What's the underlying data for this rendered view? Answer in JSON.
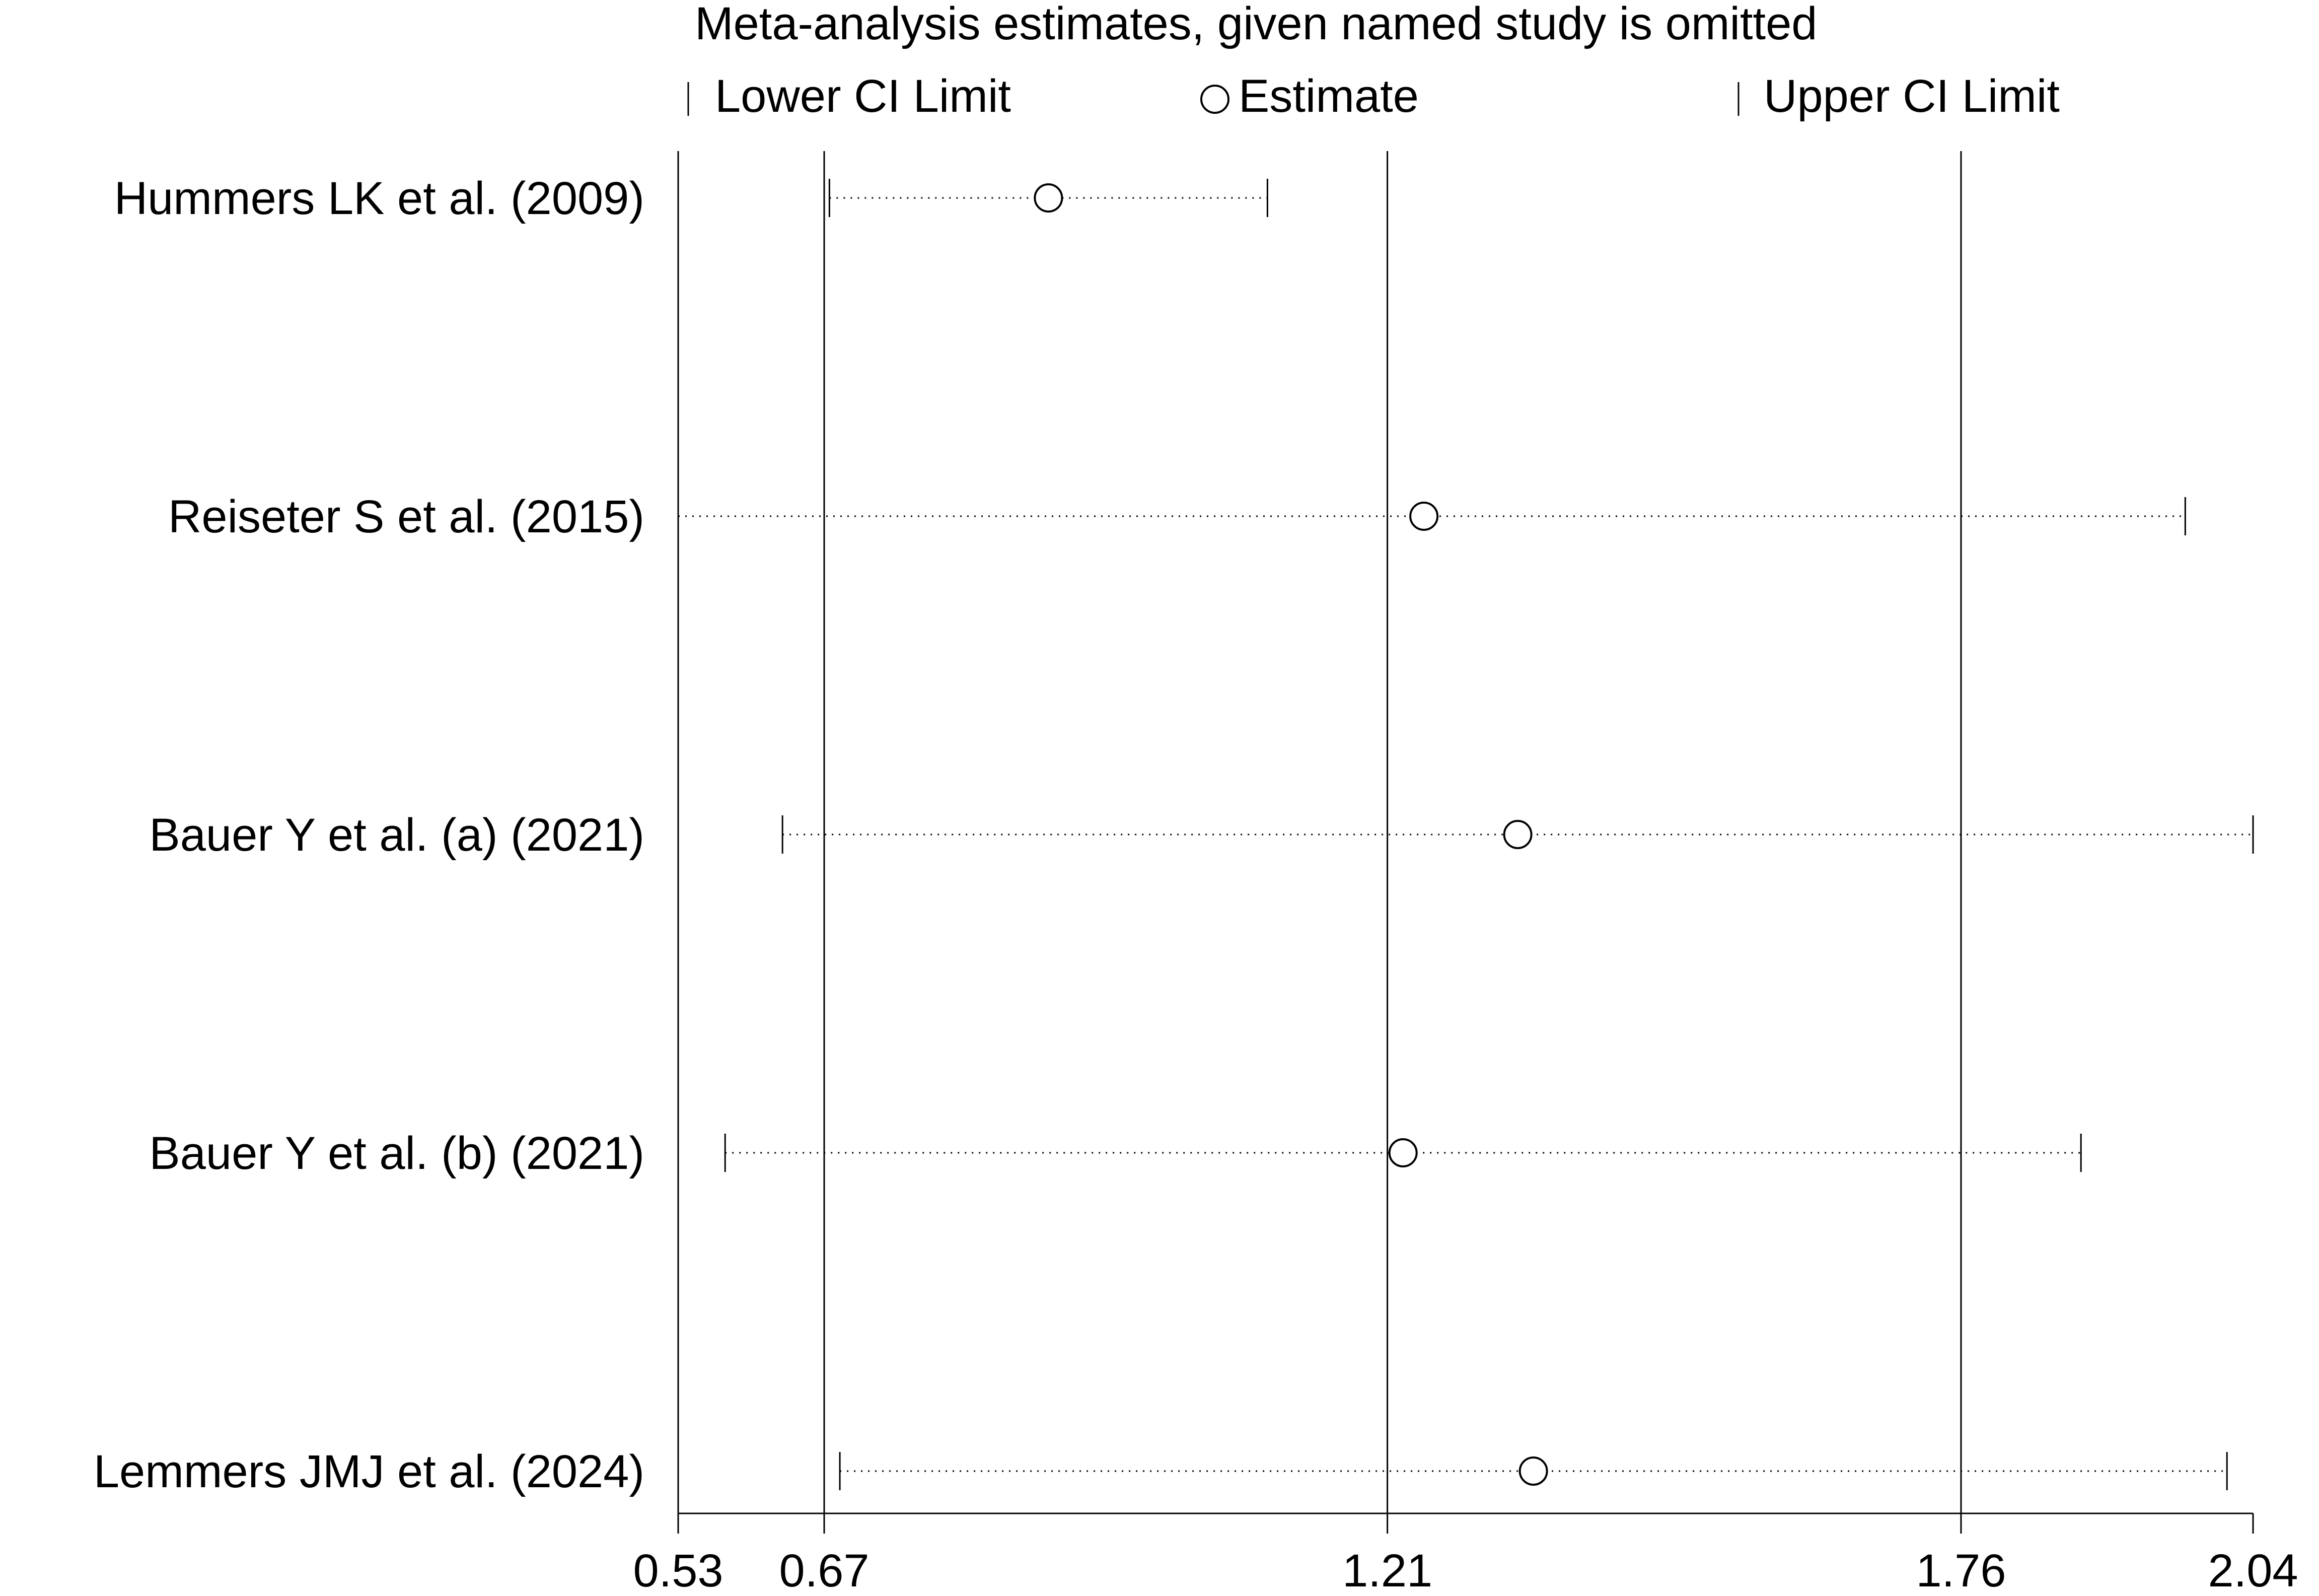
{
  "chart_data": {
    "type": "forest",
    "title": "Meta-analysis estimates, given named study is omitted",
    "legend": {
      "position": "top",
      "lower_label": "Lower CI Limit",
      "estimate_label": "Estimate",
      "upper_label": "Upper CI Limit"
    },
    "xlim": [
      0.53,
      2.04
    ],
    "x_ticks": [
      {
        "value": 0.53,
        "label": "0.53"
      },
      {
        "value": 0.67,
        "label": "0.67"
      },
      {
        "value": 1.21,
        "label": "1.21"
      },
      {
        "value": 1.76,
        "label": "1.76"
      },
      {
        "value": 2.04,
        "label": "2.04"
      }
    ],
    "reference_lines": [
      0.67,
      1.21,
      1.76
    ],
    "studies": [
      {
        "label": "Hummers LK et al. (2009)",
        "lower": 0.675,
        "estimate": 0.885,
        "upper": 1.095
      },
      {
        "label": "Reiseter S et al. (2015)",
        "lower": 0.53,
        "estimate": 1.245,
        "upper": 1.975
      },
      {
        "label": "Bauer Y et al. (a) (2021)",
        "lower": 0.63,
        "estimate": 1.335,
        "upper": 2.04
      },
      {
        "label": "Bauer Y et al. (b) (2021)",
        "lower": 0.575,
        "estimate": 1.225,
        "upper": 1.875
      },
      {
        "label": "Lemmers JMJ et al. (2024)",
        "lower": 0.685,
        "estimate": 1.35,
        "upper": 2.015
      }
    ]
  }
}
